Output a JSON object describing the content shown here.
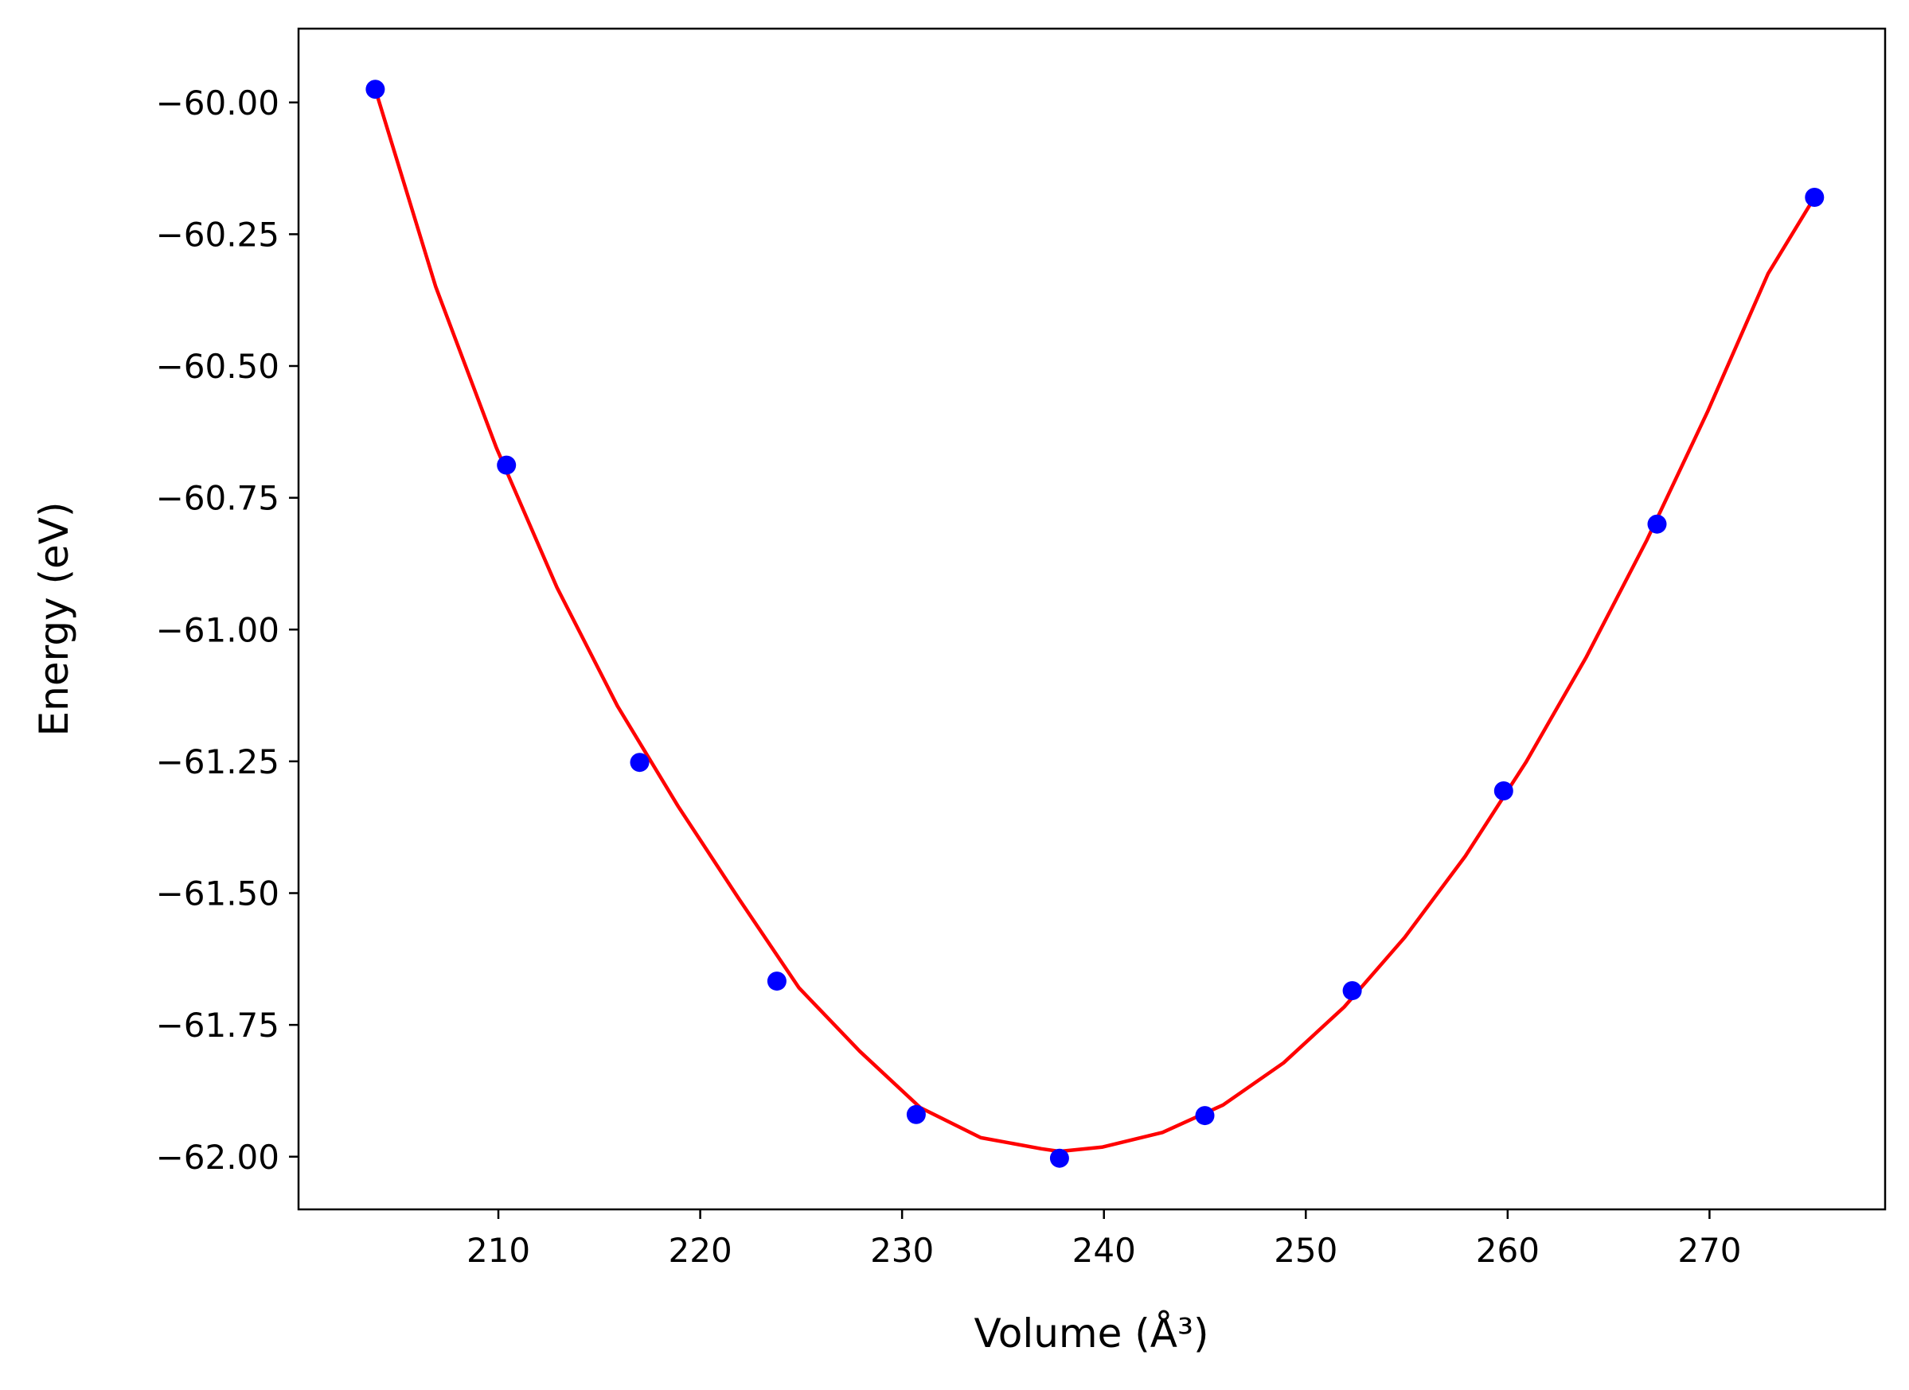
{
  "chart_data": {
    "type": "scatter",
    "title": "",
    "xlabel": "Volume (Å³)",
    "ylabel": "Energy (eV)",
    "xlim": [
      200.1,
      278.7
    ],
    "ylim": [
      -62.1,
      -59.86
    ],
    "x_ticks": [
      210,
      220,
      230,
      240,
      250,
      260,
      270
    ],
    "x_tick_labels": [
      "210",
      "220",
      "230",
      "240",
      "250",
      "260",
      "270"
    ],
    "y_ticks": [
      -60.0,
      -60.25,
      -60.5,
      -60.75,
      -61.0,
      -61.25,
      -61.5,
      -61.75,
      -62.0
    ],
    "y_tick_labels": [
      "−60.00",
      "−60.25",
      "−60.50",
      "−60.75",
      "−61.00",
      "−61.25",
      "−61.50",
      "−61.75",
      "−62.00"
    ],
    "grid": false,
    "legend": "none",
    "series": [
      {
        "kind": "points",
        "color": "#0000ff",
        "x": [
          203.9,
          210.4,
          217.0,
          223.8,
          230.7,
          237.8,
          245.0,
          252.3,
          259.8,
          267.4,
          275.2
        ],
        "y": [
          -59.975,
          -60.688,
          -61.252,
          -61.667,
          -61.92,
          -62.003,
          -61.922,
          -61.685,
          -61.306,
          -60.8,
          -60.18
        ]
      },
      {
        "kind": "fit-curve",
        "color": "#ff0000",
        "x": [
          203.9,
          206.9,
          209.9,
          212.9,
          215.9,
          218.9,
          221.9,
          224.9,
          227.9,
          230.9,
          233.9,
          236.9,
          237.8,
          239.9,
          242.9,
          245.9,
          248.9,
          251.9,
          254.9,
          257.9,
          260.9,
          263.9,
          266.9,
          269.9,
          272.9,
          275.2
        ],
        "y": [
          -59.975,
          -60.35,
          -60.655,
          -60.92,
          -61.145,
          -61.335,
          -61.51,
          -61.68,
          -61.8,
          -61.907,
          -61.964,
          -61.985,
          -61.99,
          -61.982,
          -61.954,
          -61.902,
          -61.822,
          -61.716,
          -61.584,
          -61.43,
          -61.252,
          -61.052,
          -60.83,
          -60.587,
          -60.325,
          -60.18
        ]
      }
    ]
  }
}
